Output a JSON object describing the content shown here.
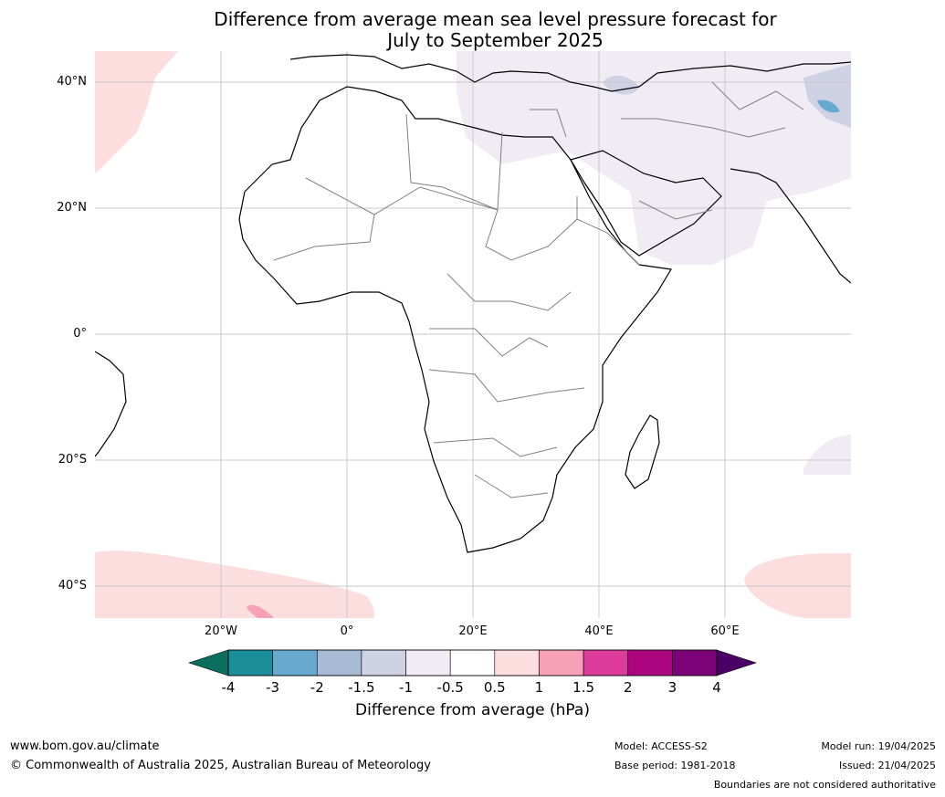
{
  "title": {
    "line1": "Difference from average mean sea level pressure forecast for",
    "line2": "July to September 2025"
  },
  "map": {
    "lat_labels": [
      "40°N",
      "20°N",
      "0°",
      "20°S",
      "40°S"
    ],
    "lon_labels": [
      "20°W",
      "0°",
      "20°E",
      "40°E",
      "60°E"
    ],
    "extent": {
      "lon_min": -40,
      "lon_max": 80,
      "lat_min": -45,
      "lat_max": 45
    }
  },
  "colorbar": {
    "label": "Difference from average (hPa)",
    "ticks": [
      "-4",
      "-3",
      "-2",
      "-1.5",
      "-1",
      "-0.5",
      "0.5",
      "1",
      "1.5",
      "2",
      "3",
      "4"
    ],
    "colors": [
      "#1b8f99",
      "#68a9d0",
      "#a7bbd7",
      "#cfd1e4",
      "#f1ecf4",
      "#ffffff",
      "#fddede",
      "#f8a0b6",
      "#dc3b9c",
      "#ad057f",
      "#7b0377"
    ],
    "extend_low_color": "#0b6e5f",
    "extend_high_color": "#4a0064"
  },
  "footer": {
    "website": "www.bom.gov.au/climate",
    "copyright": "© Commonwealth of Australia 2025, Australian Bureau of Meteorology",
    "model": "Model: ACCESS-S2",
    "base_period": "Base period: 1981-2018",
    "model_run": "Model run: 19/04/2025",
    "issued": "Issued: 21/04/2025",
    "disclaimer": "Boundaries are not considered authoritative"
  }
}
